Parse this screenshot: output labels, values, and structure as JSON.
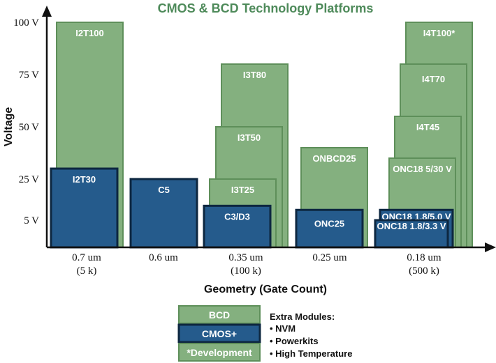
{
  "colors": {
    "bcd": "#84b07f",
    "bcd_edge": "#5e8f5a",
    "cmos": "#255b8c",
    "cmos_edge": "#0d2740",
    "axis": "#111111"
  },
  "chart_data": {
    "type": "bar",
    "title": "CMOS & BCD Technology Platforms",
    "xlabel": "Geometry (Gate Count)",
    "ylabel": "Voltage",
    "yticks": [
      "100 V",
      "75 V",
      "50 V",
      "25 V",
      "5 V"
    ],
    "ytick_values": [
      100,
      75,
      50,
      25,
      5
    ],
    "categories": [
      {
        "label": "0.7 um",
        "sublabel": "(5 k)"
      },
      {
        "label": "0.6 um",
        "sublabel": ""
      },
      {
        "label": "0.35 um",
        "sublabel": "(100 k)"
      },
      {
        "label": "0.25 um",
        "sublabel": ""
      },
      {
        "label": "0.18 um",
        "sublabel": "(500 k)"
      }
    ],
    "bars": [
      {
        "name": "I2T100",
        "category": "0.7 um",
        "type": "BCD",
        "voltage": 100
      },
      {
        "name": "I2T30",
        "category": "0.7 um",
        "type": "CMOS+",
        "voltage": 30
      },
      {
        "name": "C5",
        "category": "0.6 um",
        "type": "CMOS+",
        "voltage": 25
      },
      {
        "name": "I3T80",
        "category": "0.35 um",
        "type": "BCD",
        "voltage": 80
      },
      {
        "name": "I3T50",
        "category": "0.35 um",
        "type": "BCD",
        "voltage": 50
      },
      {
        "name": "I3T25",
        "category": "0.35 um",
        "type": "BCD",
        "voltage": 25
      },
      {
        "name": "C3/D3",
        "category": "0.35 um",
        "type": "CMOS+",
        "voltage": 12
      },
      {
        "name": "ONBCD25",
        "category": "0.25 um",
        "type": "BCD",
        "voltage": 40
      },
      {
        "name": "ONC25",
        "category": "0.25 um",
        "type": "CMOS+",
        "voltage": 10
      },
      {
        "name": "I4T100*",
        "category": "0.18 um",
        "type": "BCD",
        "voltage": 100
      },
      {
        "name": "I4T70",
        "category": "0.18 um",
        "type": "BCD",
        "voltage": 80
      },
      {
        "name": "I4T45",
        "category": "0.18 um",
        "type": "BCD",
        "voltage": 55
      },
      {
        "name": "ONC18 5/30 V",
        "category": "0.18 um",
        "type": "BCD",
        "voltage": 35
      },
      {
        "name": "ONC18 1.8/5.0 V",
        "category": "0.18 um",
        "type": "CMOS+",
        "voltage": 10
      },
      {
        "name": "ONC18 1.8/3.3 V",
        "category": "0.18 um",
        "type": "CMOS+",
        "voltage": 5
      }
    ],
    "legend": [
      {
        "label": "BCD",
        "type": "BCD"
      },
      {
        "label": "CMOS+",
        "type": "CMOS+"
      },
      {
        "label": "*Development",
        "type": "BCD"
      }
    ],
    "extra_modules": {
      "title": "Extra Modules:",
      "items": [
        "• NVM",
        "• Powerkits",
        "• High Temperature"
      ]
    }
  }
}
